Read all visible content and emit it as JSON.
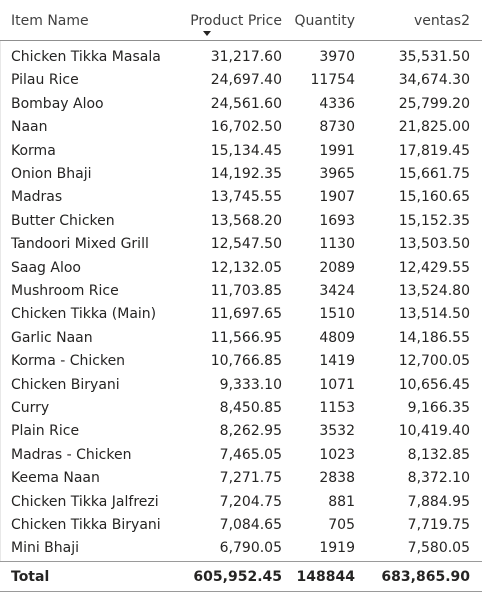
{
  "table": {
    "columns": {
      "name": "Item Name",
      "price": "Product Price",
      "quantity": "Quantity",
      "sales": "ventas2"
    },
    "sort_icon": "sort-descending-icon",
    "rows": [
      {
        "name": "Chicken Tikka Masala",
        "price": "31,217.60",
        "quantity": "3970",
        "sales": "35,531.50"
      },
      {
        "name": "Pilau Rice",
        "price": "24,697.40",
        "quantity": "11754",
        "sales": "34,674.30"
      },
      {
        "name": "Bombay Aloo",
        "price": "24,561.60",
        "quantity": "4336",
        "sales": "25,799.20"
      },
      {
        "name": "Naan",
        "price": "16,702.50",
        "quantity": "8730",
        "sales": "21,825.00"
      },
      {
        "name": "Korma",
        "price": "15,134.45",
        "quantity": "1991",
        "sales": "17,819.45"
      },
      {
        "name": "Onion Bhaji",
        "price": "14,192.35",
        "quantity": "3965",
        "sales": "15,661.75"
      },
      {
        "name": "Madras",
        "price": "13,745.55",
        "quantity": "1907",
        "sales": "15,160.65"
      },
      {
        "name": "Butter Chicken",
        "price": "13,568.20",
        "quantity": "1693",
        "sales": "15,152.35"
      },
      {
        "name": "Tandoori Mixed Grill",
        "price": "12,547.50",
        "quantity": "1130",
        "sales": "13,503.50"
      },
      {
        "name": "Saag Aloo",
        "price": "12,132.05",
        "quantity": "2089",
        "sales": "12,429.55"
      },
      {
        "name": "Mushroom Rice",
        "price": "11,703.85",
        "quantity": "3424",
        "sales": "13,524.80"
      },
      {
        "name": "Chicken Tikka (Main)",
        "price": "11,697.65",
        "quantity": "1510",
        "sales": "13,514.50"
      },
      {
        "name": "Garlic Naan",
        "price": "11,566.95",
        "quantity": "4809",
        "sales": "14,186.55"
      },
      {
        "name": "Korma - Chicken",
        "price": "10,766.85",
        "quantity": "1419",
        "sales": "12,700.05"
      },
      {
        "name": "Chicken Biryani",
        "price": "9,333.10",
        "quantity": "1071",
        "sales": "10,656.45"
      },
      {
        "name": "Curry",
        "price": "8,450.85",
        "quantity": "1153",
        "sales": "9,166.35"
      },
      {
        "name": "Plain Rice",
        "price": "8,262.95",
        "quantity": "3532",
        "sales": "10,419.40"
      },
      {
        "name": "Madras - Chicken",
        "price": "7,465.05",
        "quantity": "1023",
        "sales": "8,132.85"
      },
      {
        "name": "Keema Naan",
        "price": "7,271.75",
        "quantity": "2838",
        "sales": "8,372.10"
      },
      {
        "name": "Chicken Tikka Jalfrezi",
        "price": "7,204.75",
        "quantity": "881",
        "sales": "7,884.95"
      },
      {
        "name": "Chicken Tikka Biryani",
        "price": "7,084.65",
        "quantity": "705",
        "sales": "7,719.75"
      },
      {
        "name": "Mini Bhaji",
        "price": "6,790.05",
        "quantity": "1919",
        "sales": "7,580.05"
      }
    ],
    "total": {
      "label": "Total",
      "price": "605,952.45",
      "quantity": "148844",
      "sales": "683,865.90"
    }
  }
}
